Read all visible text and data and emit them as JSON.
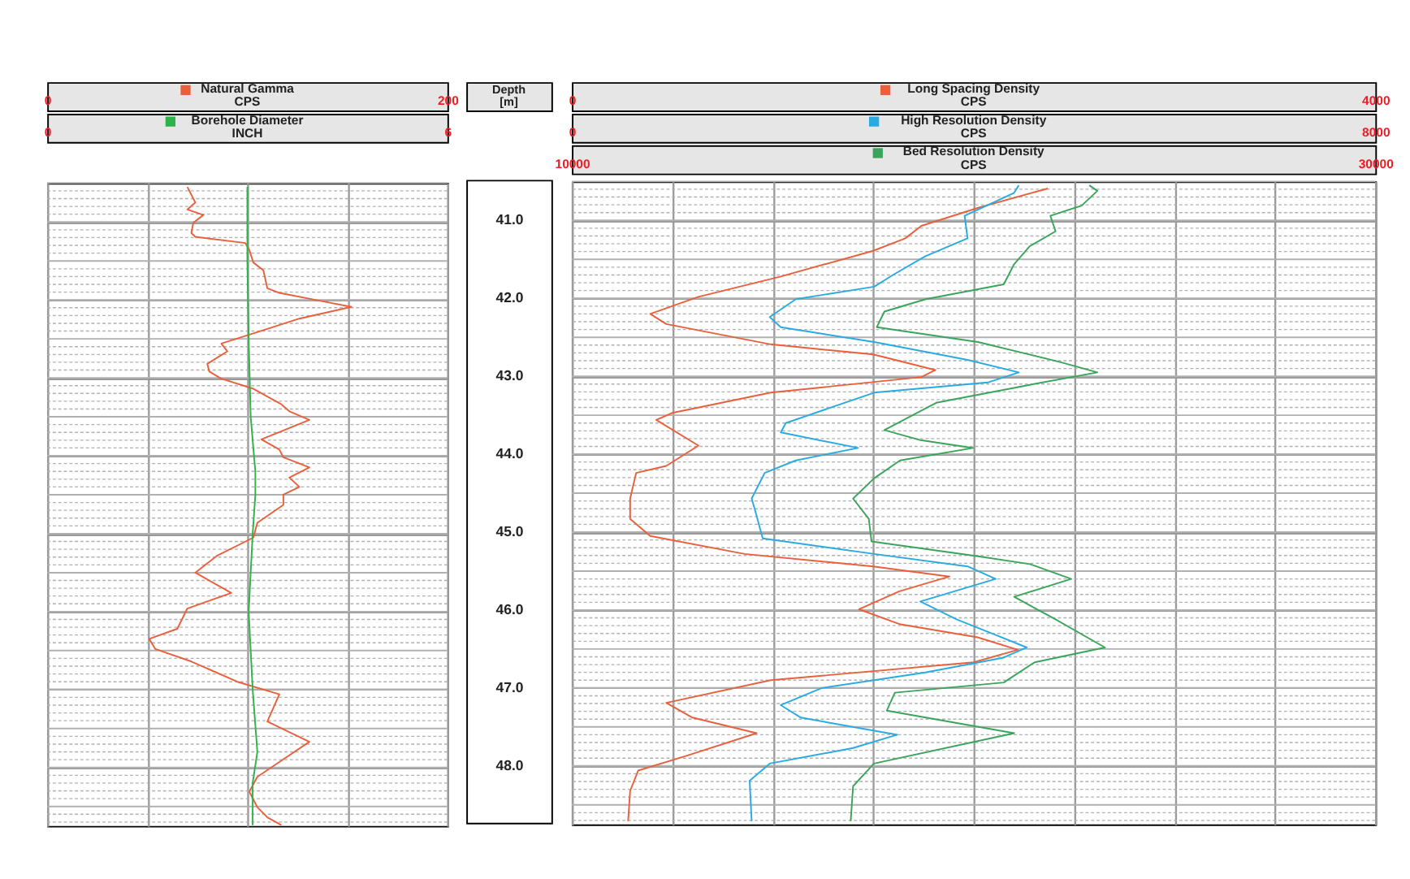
{
  "chart_data": [
    {
      "type": "line",
      "orientation": "horizontal",
      "ylabel": "Depth [m]",
      "ylim": [
        48.75,
        40.5
      ],
      "yticks": [
        {
          "value": 41,
          "label": "41.0"
        },
        {
          "value": 42,
          "label": "42.0"
        },
        {
          "value": 43,
          "label": "43.0"
        },
        {
          "value": 44,
          "label": "44.0"
        },
        {
          "value": 45,
          "label": "45.0"
        },
        {
          "value": 46,
          "label": "46.0"
        },
        {
          "value": 47,
          "label": "47.0"
        },
        {
          "value": 48,
          "label": "48.0"
        }
      ],
      "grid": true,
      "legend": "top",
      "xlabel": "CPS",
      "xlim": [
        0,
        200
      ],
      "xticks": [
        0,
        {
          "value": 50,
          "label": null
        },
        {
          "value": 100,
          "label": null
        },
        {
          "value": 150,
          "label": null
        },
        200
      ],
      "x2label": "INCH",
      "x2lim": [
        0,
        6
      ],
      "x2ticks": [
        0,
        6
      ],
      "series": [
        {
          "name": "Natural Gamma",
          "color": "#e8603c",
          "x": [
            40.55,
            40.75,
            40.84,
            40.91,
            41.01,
            41.14,
            41.19,
            41.27,
            41.36,
            41.52,
            41.62,
            41.85,
            41.91,
            42.01,
            42.09,
            42.24,
            42.43,
            42.56,
            42.66,
            42.82,
            42.92,
            43.01,
            43.14,
            43.34,
            43.43,
            43.54,
            43.79,
            43.92,
            44.02,
            44.15,
            44.28,
            44.4,
            44.5,
            44.63,
            44.86,
            45.05,
            45.28,
            45.5,
            45.76,
            45.96,
            46.22,
            46.35,
            46.48,
            46.64,
            46.9,
            47.06,
            47.41,
            47.67,
            47.93,
            48.12,
            48.31,
            48.51,
            48.64,
            48.74
          ],
          "values": [
            70,
            74,
            70,
            78,
            73,
            72,
            74,
            99,
            101,
            103,
            108,
            110,
            116,
            136,
            152,
            126,
            103,
            87,
            90,
            80,
            81,
            87,
            103,
            117,
            121,
            131,
            107,
            116,
            118,
            131,
            121,
            126,
            118,
            118,
            105,
            103,
            85,
            74,
            92,
            70,
            65,
            51,
            54,
            72,
            95,
            116,
            110,
            131,
            116,
            105,
            101,
            105,
            110,
            117
          ]
        },
        {
          "name": "Borehole Diameter",
          "color": "#2db34a",
          "axis": "x2",
          "x": [
            40.55,
            41.5,
            42.5,
            43.5,
            44.2,
            44.5,
            45.0,
            46.0,
            47.0,
            47.8,
            48.2,
            48.74
          ],
          "values": [
            3.0,
            3.0,
            3.02,
            3.05,
            3.12,
            3.12,
            3.08,
            3.02,
            3.08,
            3.15,
            3.08,
            3.08
          ]
        }
      ]
    },
    {
      "type": "line",
      "orientation": "horizontal",
      "ylim": [
        48.75,
        40.5
      ],
      "tick_labels": "x",
      "grid": true,
      "legend": "top",
      "xlabel": "CPS",
      "xlim": [
        0,
        4000
      ],
      "xticks": [
        0,
        {
          "value": 500,
          "label": null
        },
        {
          "value": 1000,
          "label": null
        },
        {
          "value": 1500,
          "label": null
        },
        {
          "value": 2000,
          "label": null
        },
        {
          "value": 2500,
          "label": null
        },
        {
          "value": 3000,
          "label": null
        },
        {
          "value": 3500,
          "label": null
        },
        4000
      ],
      "x2label": "CPS",
      "x2lim": [
        0,
        8000
      ],
      "x2ticks": [
        0,
        8000
      ],
      "series": [
        {
          "name": "Long Spacing Density",
          "color": "#e8603c",
          "x": [
            40.59,
            40.84,
            41.07,
            41.23,
            41.39,
            41.72,
            41.98,
            42.2,
            42.33,
            42.59,
            42.72,
            42.92,
            43.01,
            43.21,
            43.47,
            43.56,
            43.89,
            44.15,
            44.24,
            44.57,
            44.83,
            45.05,
            45.28,
            45.44,
            45.57,
            45.76,
            45.99,
            46.18,
            46.35,
            46.51,
            46.67,
            46.9,
            47.19,
            47.38,
            47.58,
            47.87,
            48.06,
            48.32,
            48.71
          ],
          "values": [
            2370,
            2020,
            1740,
            1660,
            1500,
            1040,
            630,
            390,
            470,
            990,
            1500,
            1810,
            1740,
            990,
            500,
            420,
            630,
            470,
            320,
            290,
            290,
            390,
            860,
            1500,
            1880,
            1630,
            1430,
            1630,
            2020,
            2220,
            2000,
            990,
            470,
            600,
            920,
            570,
            330,
            290,
            280
          ]
        },
        {
          "name": "High Resolution Density",
          "color": "#29abe2",
          "axis": "x2",
          "x": [
            40.55,
            40.65,
            40.94,
            41.23,
            41.46,
            41.69,
            41.85,
            42.01,
            42.24,
            42.37,
            42.56,
            42.79,
            42.95,
            43.08,
            43.21,
            43.6,
            43.72,
            43.92,
            44.08,
            44.24,
            44.57,
            44.7,
            45.08,
            45.28,
            45.44,
            45.6,
            45.89,
            46.12,
            46.31,
            46.48,
            46.61,
            46.8,
            47.0,
            47.22,
            47.38,
            47.6,
            47.77,
            47.97,
            48.19,
            48.71
          ],
          "values": [
            4450,
            4400,
            3910,
            3940,
            3520,
            3210,
            3010,
            2230,
            1970,
            2080,
            3010,
            3940,
            4450,
            4140,
            3010,
            2130,
            2080,
            2850,
            2230,
            1920,
            1790,
            1820,
            1900,
            3010,
            3940,
            4220,
            3470,
            3830,
            4200,
            4530,
            4300,
            3520,
            2490,
            2080,
            2280,
            3240,
            2800,
            1970,
            1770,
            1790
          ]
        }
      ]
    },
    {
      "type": "line",
      "orientation": "horizontal",
      "ylim": [
        48.75,
        40.5
      ],
      "tick_labels": "x",
      "grid": true,
      "legend": "top",
      "xlabel": "CPS",
      "xlim": [
        10000,
        30000
      ],
      "xticks": [
        10000,
        30000
      ],
      "series": [
        {
          "name": "Bed Resolution Density",
          "color": "#3aa55a",
          "x": [
            40.55,
            40.62,
            40.81,
            40.94,
            41.14,
            41.33,
            41.56,
            41.82,
            42.01,
            42.17,
            42.37,
            42.56,
            42.69,
            42.82,
            42.95,
            43.11,
            43.34,
            43.69,
            43.82,
            43.92,
            44.08,
            44.31,
            44.57,
            44.83,
            45.12,
            45.31,
            45.41,
            45.6,
            45.83,
            46.12,
            46.48,
            46.67,
            46.93,
            47.06,
            47.29,
            47.58,
            47.97,
            48.26,
            48.71
          ],
          "values": [
            22880,
            23080,
            22690,
            21910,
            22040,
            21400,
            21010,
            20750,
            18810,
            17780,
            17590,
            20110,
            21140,
            22170,
            23080,
            21400,
            19070,
            17780,
            18680,
            19990,
            18170,
            17520,
            17000,
            17390,
            17460,
            20110,
            21400,
            22430,
            21010,
            22040,
            23270,
            21520,
            20750,
            18040,
            17840,
            21010,
            17520,
            17000,
            16940
          ]
        }
      ]
    }
  ]
}
